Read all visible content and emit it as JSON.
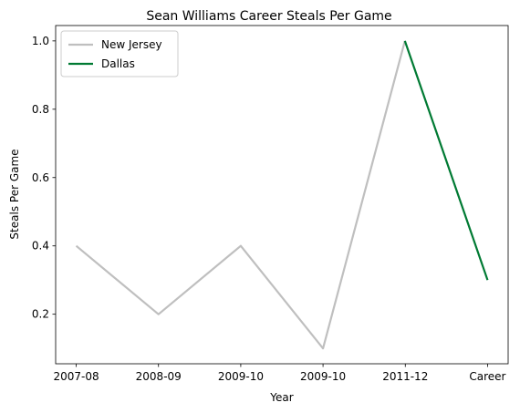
{
  "chart_data": {
    "type": "line",
    "title": "Sean Williams  Career Steals Per Game",
    "xlabel": "Year",
    "ylabel": "Steals Per Game",
    "categories": [
      "2007-08",
      "2008-09",
      "2009-10",
      "2009-10",
      "2011-12",
      "Career"
    ],
    "x_positions": [
      0,
      1,
      2,
      3,
      3.995,
      4,
      5
    ],
    "x_tick_positions": [
      0,
      1,
      2,
      3,
      4,
      5
    ],
    "y_ticks": [
      0.2,
      0.4,
      0.6,
      0.8,
      1.0
    ],
    "y_tick_labels": [
      "0.2",
      "0.4",
      "0.6",
      "0.8",
      "1.0"
    ],
    "xlim": [
      -0.25,
      5.25
    ],
    "ylim": [
      0.055,
      1.045
    ],
    "grid": false,
    "legend_position": "upper left",
    "series": [
      {
        "name": "New Jersey",
        "color": "#bfbfbf",
        "points": [
          {
            "x": 0,
            "y": 0.4
          },
          {
            "x": 1,
            "y": 0.2
          },
          {
            "x": 2,
            "y": 0.4
          },
          {
            "x": 3,
            "y": 0.1
          },
          {
            "x": 3.995,
            "y": 1.0
          }
        ]
      },
      {
        "name": "Dallas",
        "color": "#007a33",
        "points": [
          {
            "x": 3.995,
            "y": 1.0
          },
          {
            "x": 5,
            "y": 0.3
          }
        ]
      }
    ]
  }
}
